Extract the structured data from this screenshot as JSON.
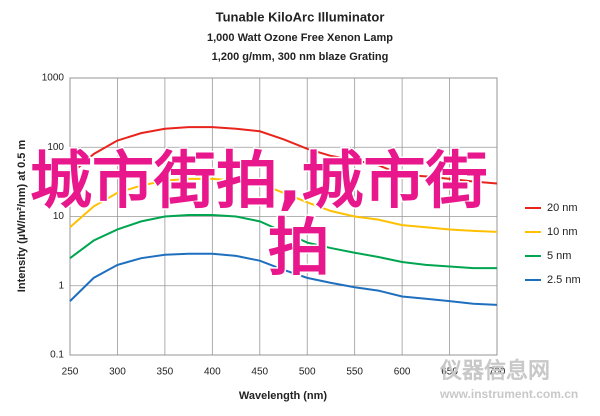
{
  "chart_data": {
    "type": "line",
    "title": "Tunable KiloArc Illuminator",
    "subtitles": [
      "1,000 Watt Ozone Free Xenon Lamp",
      "1,200 g/mm, 300 nm blaze Grating"
    ],
    "x_label": "Wavelength (nm)",
    "y_label": "Intensity (µW/m²/nm) at 0.5 m",
    "x": [
      250,
      275,
      300,
      325,
      350,
      375,
      400,
      425,
      450,
      475,
      500,
      525,
      550,
      575,
      600,
      625,
      650,
      675,
      700
    ],
    "series": [
      {
        "name": "20 nm",
        "color": "#e8241c",
        "values": [
          40,
          80,
          125,
          160,
          185,
          195,
          195,
          185,
          170,
          130,
          95,
          75,
          65,
          55,
          40,
          38,
          35,
          32,
          30
        ]
      },
      {
        "name": "10 nm",
        "color": "#ffc000",
        "values": [
          7,
          14,
          22,
          28,
          33,
          35,
          35,
          33,
          30,
          22,
          16,
          12,
          10,
          9,
          7.5,
          7,
          6.5,
          6.2,
          6
        ]
      },
      {
        "name": "5 nm",
        "color": "#00a550",
        "values": [
          2.5,
          4.5,
          6.5,
          8.5,
          10,
          10.5,
          10.5,
          10,
          8.5,
          6,
          4.2,
          3.5,
          3,
          2.6,
          2.2,
          2,
          1.9,
          1.8,
          1.8
        ]
      },
      {
        "name": "2.5 nm",
        "color": "#1f6fbf",
        "values": [
          0.6,
          1.3,
          2,
          2.5,
          2.8,
          2.9,
          2.9,
          2.7,
          2.3,
          1.7,
          1.3,
          1.1,
          0.95,
          0.85,
          0.7,
          0.65,
          0.6,
          0.55,
          0.53
        ]
      }
    ],
    "xlim": [
      250,
      700
    ],
    "xticks": [
      250,
      300,
      350,
      400,
      450,
      500,
      550,
      600,
      650,
      700
    ],
    "ylim": [
      0.1,
      1000
    ],
    "yticks": [
      0.1,
      1,
      10,
      100,
      1000
    ],
    "y_scale": "log",
    "grid": true,
    "legend": "right",
    "overlay_text": [
      "城市街拍,城市街",
      "拍"
    ],
    "watermark": [
      "仪器信息网",
      "www.instrument.com.cn"
    ]
  }
}
